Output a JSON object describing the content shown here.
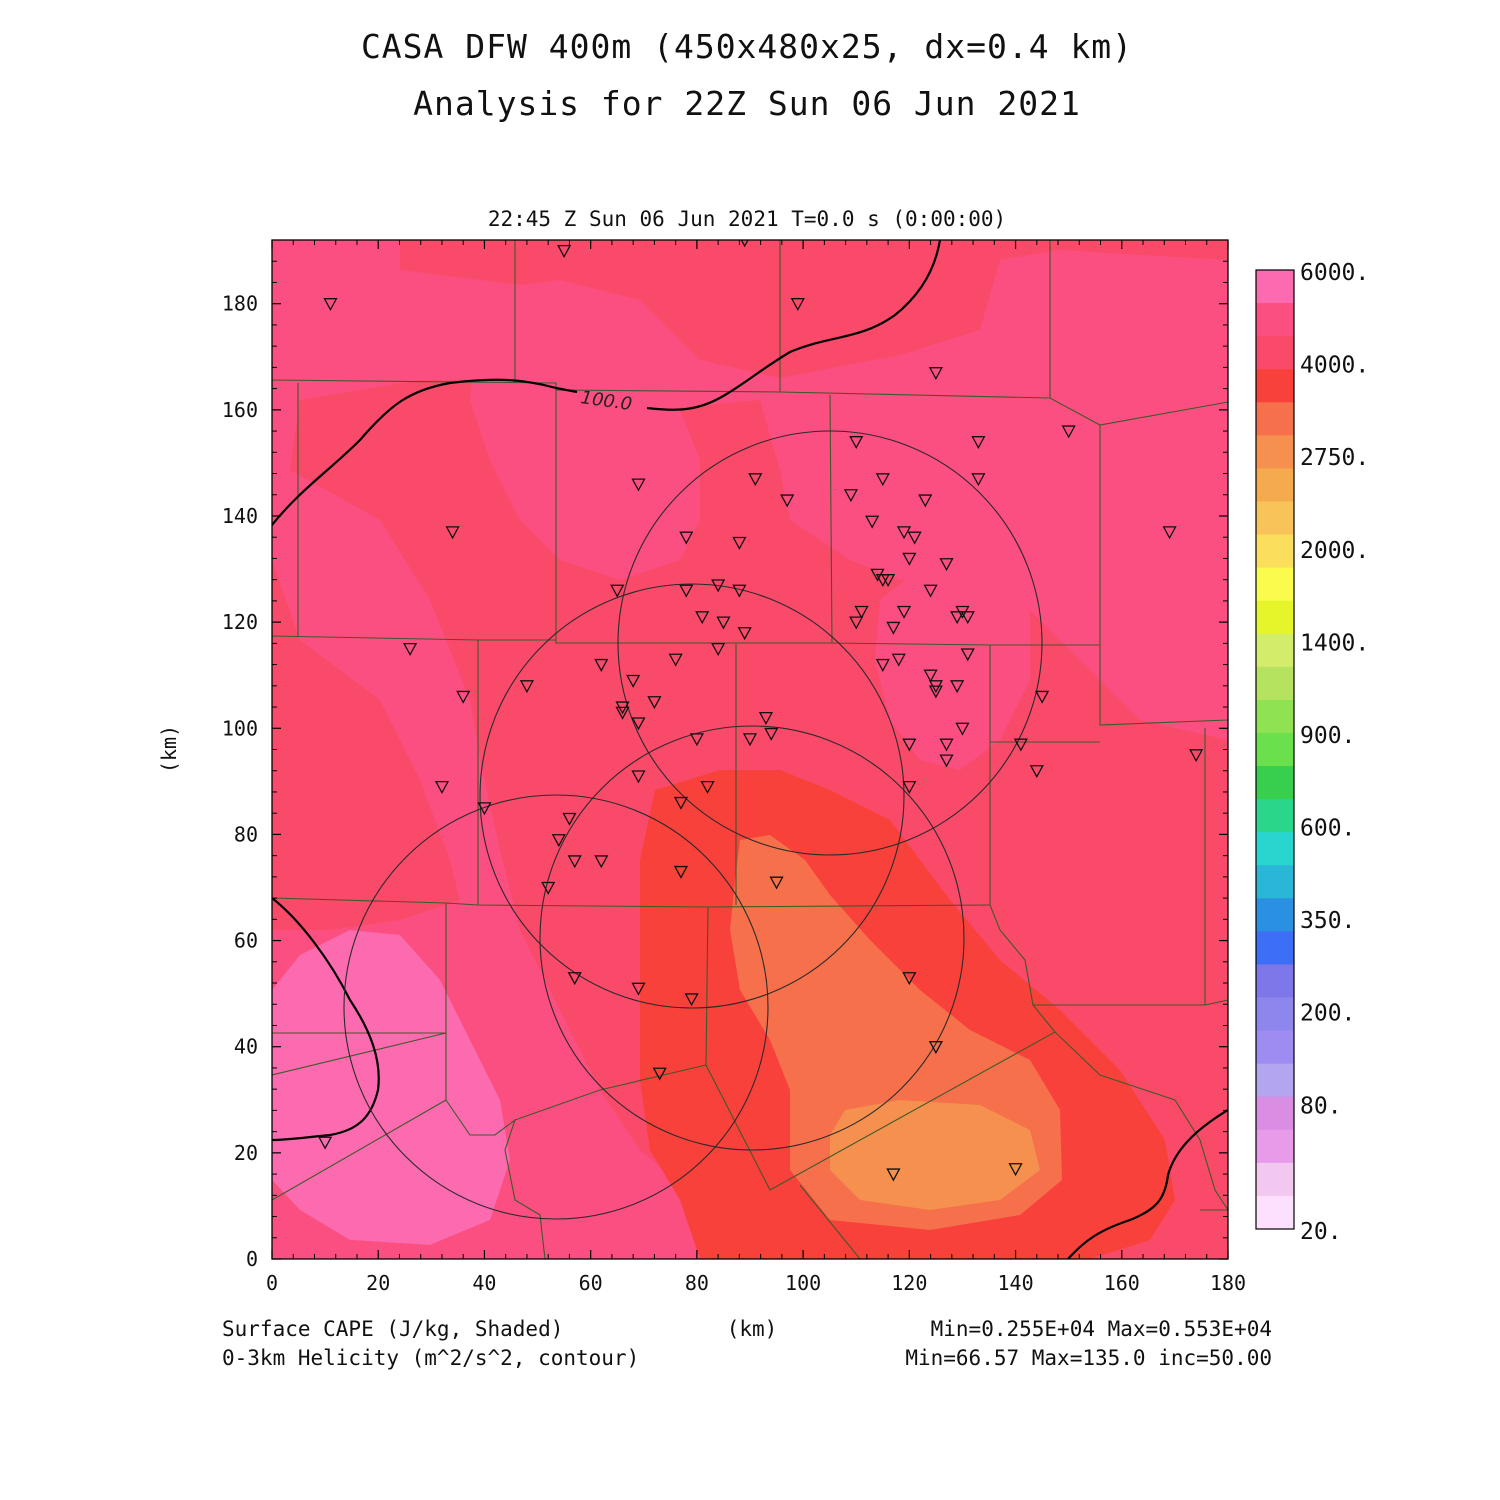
{
  "title_line1": "CASA DFW 400m (450x480x25, dx=0.4 km)",
  "title_line2": "Analysis for 22Z Sun 06 Jun 2021",
  "valid_time": "22:45 Z Sun 06 Jun 2021   T=0.0 s (0:00:00)",
  "x_axis": {
    "label": "(km)",
    "min": 0,
    "max": 180,
    "ticks": [
      0,
      20,
      40,
      60,
      80,
      100,
      120,
      140,
      160,
      180
    ]
  },
  "y_axis": {
    "label": "(km)",
    "min": 0,
    "max": 192,
    "ticks": [
      0,
      20,
      40,
      60,
      80,
      100,
      120,
      140,
      160,
      180
    ]
  },
  "footer": {
    "left_line1": "Surface CAPE (J/kg, Shaded)",
    "left_line2": "0-3km Helicity (m^2/s^2, contour)",
    "right_line1": "Min=0.255E+04 Max=0.553E+04",
    "right_line2": "Min=66.57 Max=135.0 inc=50.00"
  },
  "contour_label": "100.0",
  "colorbar": {
    "labels": [
      "6000.",
      "4000.",
      "2750.",
      "2000.",
      "1400.",
      "900.",
      "600.",
      "350.",
      "200.",
      "80.",
      "20."
    ],
    "colors_top_to_bottom": [
      "#fc6ab0",
      "#fc4f81",
      "#fa4a6a",
      "#f8413a",
      "#f6704c",
      "#f5904f",
      "#f5aa4e",
      "#f8c45a",
      "#fbdf5c",
      "#fbfb4e",
      "#e6f52a",
      "#d3ec6a",
      "#b6e35f",
      "#8fe251",
      "#6be04d",
      "#37cf4d",
      "#2ad68a",
      "#29d6cf",
      "#2ab6d6",
      "#2a90e2",
      "#3d6ff6",
      "#7e77ea",
      "#8d86ec",
      "#9e8cf2",
      "#b3a5ef",
      "#d98ee4",
      "#e79be8",
      "#f2c8f0",
      "#fde0fd"
    ]
  },
  "cape_colors": {
    "c4000": "#fc4f81",
    "c3500": "#fa4a6a",
    "c3250": "#f8413a",
    "c3000": "#f6704c",
    "c2750": "#f5904f",
    "c6000": "#fc6ab0"
  },
  "chart_data": {
    "type": "map",
    "fields": [
      "Surface CAPE (J/kg, Shaded)",
      "0-3km Helicity (m^2/s^2, contour)"
    ],
    "cape_min": 2550,
    "cape_max": 5530,
    "helicity_min": 66.57,
    "helicity_max": 135.0,
    "helicity_increment": 50.0,
    "radar_rings_km": [
      {
        "center": [
          105,
          117
        ],
        "radius": 38
      },
      {
        "center": [
          77,
          88
        ],
        "radius": 40
      },
      {
        "center": [
          90,
          62
        ],
        "radius": 40
      },
      {
        "center": [
          55,
          46
        ],
        "radius": 40
      }
    ],
    "stations_km": [
      [
        11,
        180
      ],
      [
        55,
        190
      ],
      [
        89,
        192
      ],
      [
        99,
        180
      ],
      [
        125,
        167
      ],
      [
        150,
        156
      ],
      [
        133,
        154
      ],
      [
        110,
        154
      ],
      [
        91,
        147
      ],
      [
        115,
        147
      ],
      [
        133,
        147
      ],
      [
        69,
        146
      ],
      [
        109,
        144
      ],
      [
        97,
        143
      ],
      [
        123,
        143
      ],
      [
        34,
        137
      ],
      [
        169,
        137
      ],
      [
        113,
        139
      ],
      [
        119,
        137
      ],
      [
        78,
        136
      ],
      [
        121,
        136
      ],
      [
        88,
        135
      ],
      [
        120,
        132
      ],
      [
        127,
        131
      ],
      [
        114,
        129
      ],
      [
        115,
        128
      ],
      [
        116,
        128
      ],
      [
        65,
        126
      ],
      [
        78,
        126
      ],
      [
        84,
        127
      ],
      [
        88,
        126
      ],
      [
        124,
        126
      ],
      [
        111,
        122
      ],
      [
        130,
        122
      ],
      [
        81,
        121
      ],
      [
        119,
        122
      ],
      [
        129,
        121
      ],
      [
        131,
        121
      ],
      [
        110,
        120
      ],
      [
        85,
        120
      ],
      [
        117,
        119
      ],
      [
        89,
        118
      ],
      [
        26,
        115
      ],
      [
        131,
        114
      ],
      [
        84,
        115
      ],
      [
        62,
        112
      ],
      [
        76,
        113
      ],
      [
        118,
        113
      ],
      [
        115,
        112
      ],
      [
        124,
        110
      ],
      [
        68,
        109
      ],
      [
        48,
        108
      ],
      [
        125,
        108
      ],
      [
        125,
        107
      ],
      [
        129,
        108
      ],
      [
        36,
        106
      ],
      [
        72,
        105
      ],
      [
        145,
        106
      ],
      [
        66,
        104
      ],
      [
        66,
        103
      ],
      [
        69,
        101
      ],
      [
        93,
        102
      ],
      [
        130,
        100
      ],
      [
        94,
        99
      ],
      [
        80,
        98
      ],
      [
        90,
        98
      ],
      [
        127,
        97
      ],
      [
        120,
        97
      ],
      [
        141,
        97
      ],
      [
        127,
        94
      ],
      [
        174,
        95
      ],
      [
        69,
        91
      ],
      [
        144,
        92
      ],
      [
        32,
        89
      ],
      [
        82,
        89
      ],
      [
        120,
        89
      ],
      [
        40,
        85
      ],
      [
        77,
        86
      ],
      [
        56,
        83
      ],
      [
        54,
        79
      ],
      [
        57,
        75
      ],
      [
        62,
        75
      ],
      [
        77,
        73
      ],
      [
        52,
        70
      ],
      [
        95,
        71
      ],
      [
        57,
        53
      ],
      [
        120,
        53
      ],
      [
        69,
        51
      ],
      [
        79,
        49
      ],
      [
        125,
        40
      ],
      [
        73,
        35
      ],
      [
        10,
        22
      ],
      [
        117,
        16
      ],
      [
        140,
        17
      ]
    ]
  }
}
